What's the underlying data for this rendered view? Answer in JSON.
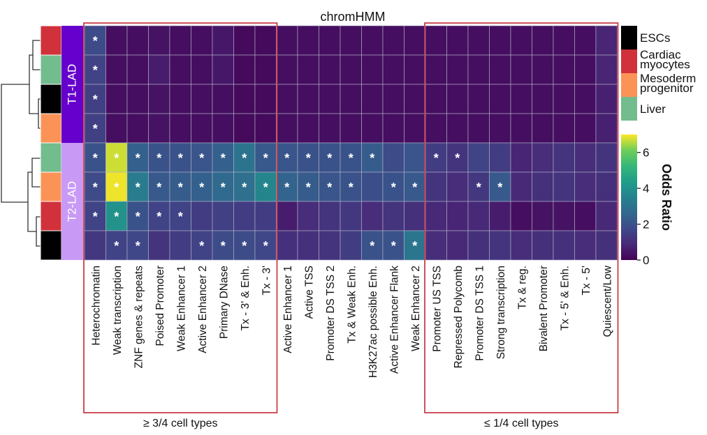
{
  "chart_data": {
    "type": "heatmap",
    "title": "chromHMM",
    "columns": [
      "Heterochromatin",
      "Weak transcription",
      "ZNF genes & repeats",
      "Poised Promoter",
      "Weak Enhancer 1",
      "Active Enhancer 2",
      "Primary DNase",
      "Tx - 3' & Enh.",
      "Tx - 3'",
      "Active Enhancer 1",
      "Active TSS",
      "Promoter DS TSS 2",
      "Tx & Weak Enh.",
      "H3K27ac possible Enh.",
      "Active Enhancer Flank",
      "Weak Enhancer 2",
      "Promoter US TSS",
      "Repressed Polycomb",
      "Promoter DS TSS 1",
      "Strong transcription",
      "Tx & reg.",
      "Bivalent Promoter",
      "Tx - 5' & Enh.",
      "Tx - 5'",
      "Quiescent/Low"
    ],
    "rows": [
      {
        "group": "T1-LAD",
        "cell_type": "Cardiac myocytes"
      },
      {
        "group": "T1-LAD",
        "cell_type": "Liver"
      },
      {
        "group": "T1-LAD",
        "cell_type": "ESCs"
      },
      {
        "group": "T1-LAD",
        "cell_type": "Mesoderm progenitor"
      },
      {
        "group": "T2-LAD",
        "cell_type": "Liver"
      },
      {
        "group": "T2-LAD",
        "cell_type": "Mesoderm progenitor"
      },
      {
        "group": "T2-LAD",
        "cell_type": "Cardiac myocytes"
      },
      {
        "group": "T2-LAD",
        "cell_type": "ESCs"
      }
    ],
    "values": [
      [
        1.8,
        0.3,
        0.3,
        0.4,
        0.3,
        0.3,
        0.5,
        0.2,
        0.2,
        0.3,
        0.3,
        0.3,
        0.3,
        0.3,
        0.3,
        0.3,
        0.3,
        0.3,
        0.3,
        0.3,
        0.3,
        0.3,
        0.3,
        0.3,
        0.8
      ],
      [
        1.6,
        0.3,
        0.3,
        0.6,
        0.3,
        0.3,
        0.5,
        0.2,
        0.2,
        0.3,
        0.3,
        0.3,
        0.3,
        0.3,
        0.3,
        0.3,
        0.3,
        0.3,
        0.3,
        0.3,
        0.3,
        0.3,
        0.3,
        0.3,
        0.8
      ],
      [
        1.5,
        0.3,
        0.3,
        0.4,
        0.3,
        0.3,
        0.3,
        0.2,
        0.2,
        0.3,
        0.3,
        0.3,
        0.3,
        0.3,
        0.3,
        0.3,
        0.3,
        0.3,
        0.3,
        0.3,
        0.3,
        0.3,
        0.3,
        0.3,
        0.7
      ],
      [
        1.5,
        0.3,
        0.3,
        0.4,
        0.3,
        0.3,
        0.3,
        0.2,
        0.2,
        0.3,
        0.3,
        0.3,
        0.3,
        0.3,
        0.3,
        0.3,
        0.3,
        0.3,
        0.3,
        0.3,
        0.3,
        0.3,
        0.3,
        0.3,
        0.7
      ],
      [
        2.0,
        6.7,
        2.4,
        2.0,
        2.0,
        2.1,
        2.4,
        3.0,
        2.2,
        2.1,
        2.0,
        2.0,
        2.0,
        2.3,
        1.8,
        2.1,
        1.4,
        1.2,
        1.6,
        1.4,
        0.8,
        1.0,
        1.2,
        1.0,
        1.2
      ],
      [
        1.8,
        6.9,
        3.3,
        2.2,
        2.3,
        2.4,
        2.7,
        2.9,
        3.6,
        2.5,
        2.3,
        2.1,
        2.0,
        1.9,
        2.0,
        2.2,
        1.2,
        1.0,
        1.3,
        2.2,
        0.9,
        1.1,
        1.2,
        1.0,
        1.1
      ],
      [
        1.6,
        4.0,
        2.0,
        1.6,
        1.6,
        1.4,
        1.5,
        1.4,
        1.4,
        0.6,
        1.0,
        1.2,
        1.3,
        1.0,
        1.2,
        1.1,
        0.9,
        0.8,
        0.9,
        0.6,
        0.3,
        0.4,
        0.4,
        0.3,
        0.9
      ],
      [
        1.3,
        1.6,
        1.7,
        1.2,
        1.4,
        1.6,
        1.8,
        1.8,
        1.7,
        1.1,
        1.1,
        1.2,
        1.4,
        2.0,
        2.0,
        3.1,
        1.0,
        0.9,
        1.1,
        1.2,
        1.0,
        1.1,
        1.1,
        1.0,
        1.1
      ]
    ],
    "significant": [
      [
        0
      ],
      [
        0
      ],
      [
        0
      ],
      [
        0
      ],
      [
        0,
        1,
        2,
        3,
        4,
        5,
        6,
        7,
        8,
        9,
        10,
        11,
        12,
        13,
        16,
        17
      ],
      [
        0,
        1,
        2,
        3,
        4,
        5,
        6,
        7,
        8,
        9,
        10,
        11,
        12,
        14,
        15,
        18,
        19
      ],
      [
        0,
        1,
        2,
        3,
        4
      ],
      [
        1,
        2,
        5,
        6,
        7,
        8,
        13,
        14,
        15
      ]
    ],
    "significance_marker": "*",
    "row_groups": [
      {
        "label": "T1-LAD",
        "color": "#6600cc"
      },
      {
        "label": "T2-LAD",
        "color": "#c99af5"
      }
    ],
    "cell_types": [
      {
        "name": "ESCs",
        "color": "#000000"
      },
      {
        "name": "Cardiac myocytes",
        "color": "#d0313a"
      },
      {
        "name": "Mesoderm progenitor",
        "color": "#fb9356"
      },
      {
        "name": "Liver",
        "color": "#72bc8e"
      }
    ],
    "legend_labels": [
      "ESCs",
      "Cardiac\nmyocytes",
      "Mesoderm\nprogenitor",
      "Liver"
    ],
    "column_groups": [
      {
        "label": "≥ 3/4 cell types",
        "start": 0,
        "end": 8
      },
      {
        "label": "≤ 1/4 cell types",
        "start": 16,
        "end": 24
      }
    ],
    "colorbar": {
      "label": "Odds Ratio",
      "ticks": [
        0,
        2,
        4,
        6
      ],
      "range": [
        0,
        7
      ],
      "colormap": "viridis"
    },
    "group_box_color": "#c8404a"
  }
}
